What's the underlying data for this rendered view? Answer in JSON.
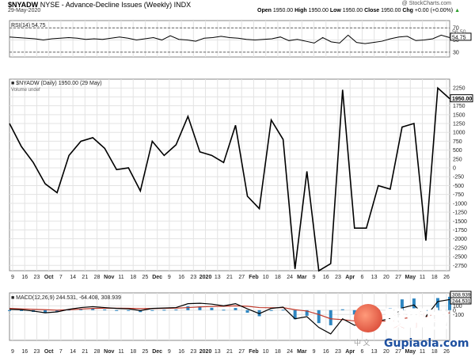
{
  "header": {
    "symbol": "$NYADW",
    "description": "NYSE - Advance-Decline Issues (Weekly)",
    "index_tag": "INDX",
    "date": "29-May-2020",
    "brand": "@ StockCharts.com",
    "quote": [
      {
        "label": "Open",
        "value": "1950.00"
      },
      {
        "label": "High",
        "value": "1950.00"
      },
      {
        "label": "Low",
        "value": "1950.00"
      },
      {
        "label": "Close",
        "value": "1950.00"
      },
      {
        "label": "Chg",
        "value": "+0.00 (+0.00%)"
      }
    ],
    "quote_icon": "up-triangle-icon"
  },
  "chart_data": [
    {
      "type": "line",
      "panel": "rsi",
      "legend": "RSI(14) 54.75",
      "ylim": [
        22,
        82
      ],
      "yticks": [
        "70",
        "50",
        "30"
      ],
      "last_value_label": "54.75",
      "overlay_value_label": "56.50",
      "ref_lines": [
        70,
        30
      ],
      "values": [
        55,
        54,
        53,
        52,
        50,
        52,
        53,
        54,
        53,
        51,
        52,
        51,
        53,
        55,
        53,
        50,
        52,
        54,
        50,
        57,
        51,
        50,
        48,
        53,
        54,
        56,
        54,
        53,
        51,
        50,
        51,
        52,
        55,
        49,
        51,
        48,
        45,
        54,
        47,
        45,
        58,
        46,
        44,
        46,
        48,
        52,
        55,
        56,
        49,
        50,
        52,
        58,
        54
      ],
      "color": "#000000"
    },
    {
      "type": "line",
      "panel": "price",
      "legend": "$NYADW (Daily) 1950.00 (29 May)",
      "sublegend": "Volume undef",
      "ylim": [
        -2900,
        2500
      ],
      "yticks": [
        "2250",
        "2000",
        "1750",
        "1500",
        "1250",
        "1000",
        "750",
        "500",
        "250",
        "0",
        "-250",
        "-500",
        "-750",
        "-1000",
        "-1250",
        "-1500",
        "-1750",
        "-2000",
        "-2250",
        "-2500",
        "-2750"
      ],
      "last_value_label": "1950.00",
      "values": [
        1250,
        600,
        150,
        -450,
        -700,
        350,
        750,
        850,
        550,
        -50,
        0,
        -650,
        750,
        350,
        650,
        1450,
        450,
        350,
        150,
        1200,
        -800,
        -1150,
        1350,
        800,
        -2850,
        -100,
        -2900,
        -2700,
        2200,
        -1700,
        -1700,
        -500,
        -600,
        1150,
        1250,
        -2050,
        2250,
        1950
      ],
      "color": "#000000"
    },
    {
      "type": "line",
      "panel": "macd",
      "legend": "MACD(12,26,9) 244.531, -64.408, 308.939",
      "legend_colors": [
        "#000000",
        "#c0392b",
        "#2e86c1"
      ],
      "ylim": [
        -700,
        400
      ],
      "yticks": [
        "100",
        "0",
        "-100"
      ],
      "last_value_labels": [
        "308.939",
        "244.531"
      ],
      "series": [
        {
          "name": "MACD",
          "color": "#000000",
          "values": [
            20,
            10,
            -20,
            -60,
            -40,
            20,
            60,
            80,
            60,
            40,
            30,
            -10,
            40,
            50,
            60,
            150,
            160,
            140,
            100,
            150,
            30,
            -80,
            40,
            70,
            -200,
            -150,
            -400,
            -550,
            -200,
            -350,
            -320,
            -250,
            -200,
            50,
            120,
            -150,
            200,
            245
          ]
        },
        {
          "name": "Signal",
          "color": "#c0392b",
          "values": [
            40,
            30,
            20,
            10,
            0,
            10,
            25,
            40,
            45,
            45,
            42,
            35,
            38,
            42,
            46,
            60,
            75,
            85,
            90,
            100,
            90,
            60,
            55,
            60,
            10,
            -20,
            -100,
            -200,
            -220,
            -250,
            -270,
            -260,
            -250,
            -200,
            -150,
            -150,
            -80,
            -64
          ]
        },
        {
          "name": "Histogram",
          "color": "#2e86c1",
          "values": [
            -20,
            -20,
            -40,
            -70,
            -40,
            10,
            35,
            40,
            15,
            -5,
            -12,
            -45,
            2,
            8,
            14,
            90,
            85,
            55,
            10,
            50,
            -60,
            -140,
            -15,
            10,
            -210,
            -130,
            -300,
            -350,
            20,
            -100,
            -50,
            10,
            50,
            250,
            270,
            0,
            280,
            309
          ]
        }
      ]
    }
  ],
  "x_labels": [
    "9",
    "16",
    "23",
    "Oct",
    "7",
    "14",
    "21",
    "28",
    "Nov",
    "11",
    "18",
    "25",
    "Dec",
    "9",
    "16",
    "23",
    "2020",
    "13",
    "21",
    "27",
    "Feb",
    "10",
    "18",
    "24",
    "Mar",
    "9",
    "16",
    "23",
    "Apr",
    "6",
    "13",
    "20",
    "27",
    "May",
    "11",
    "18",
    "26"
  ],
  "watermark": {
    "text_cn": "股票啦",
    "small_cn": "中 文",
    "site": "Gupiaola.com"
  }
}
